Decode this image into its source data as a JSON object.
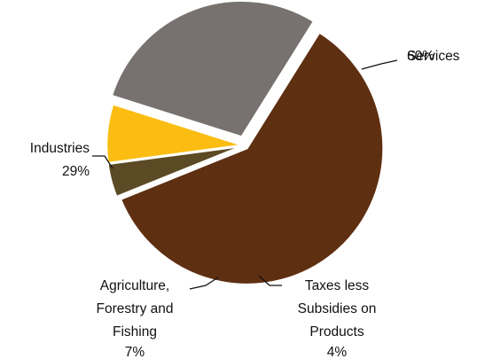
{
  "chart_data": {
    "type": "pie",
    "title": "",
    "slices": [
      {
        "name": "Services",
        "value": 60,
        "label": "60%",
        "color": "#5f2f12",
        "name_lines": [
          "Services"
        ]
      },
      {
        "name": "Taxes less Subsidies on Products",
        "value": 4,
        "label": "4%",
        "color": "#5c4a25",
        "name_lines": [
          "Taxes less",
          "Subsidies on",
          "Products"
        ]
      },
      {
        "name": "Agriculture, Forestry and Fishing",
        "value": 7,
        "label": "7%",
        "color": "#fbbd12",
        "name_lines": [
          "Agriculture,",
          "Forestry and",
          "Fishing"
        ]
      },
      {
        "name": "Industries",
        "value": 29,
        "label": "29%",
        "color": "#77726f",
        "name_lines": [
          "Industries"
        ]
      }
    ]
  }
}
